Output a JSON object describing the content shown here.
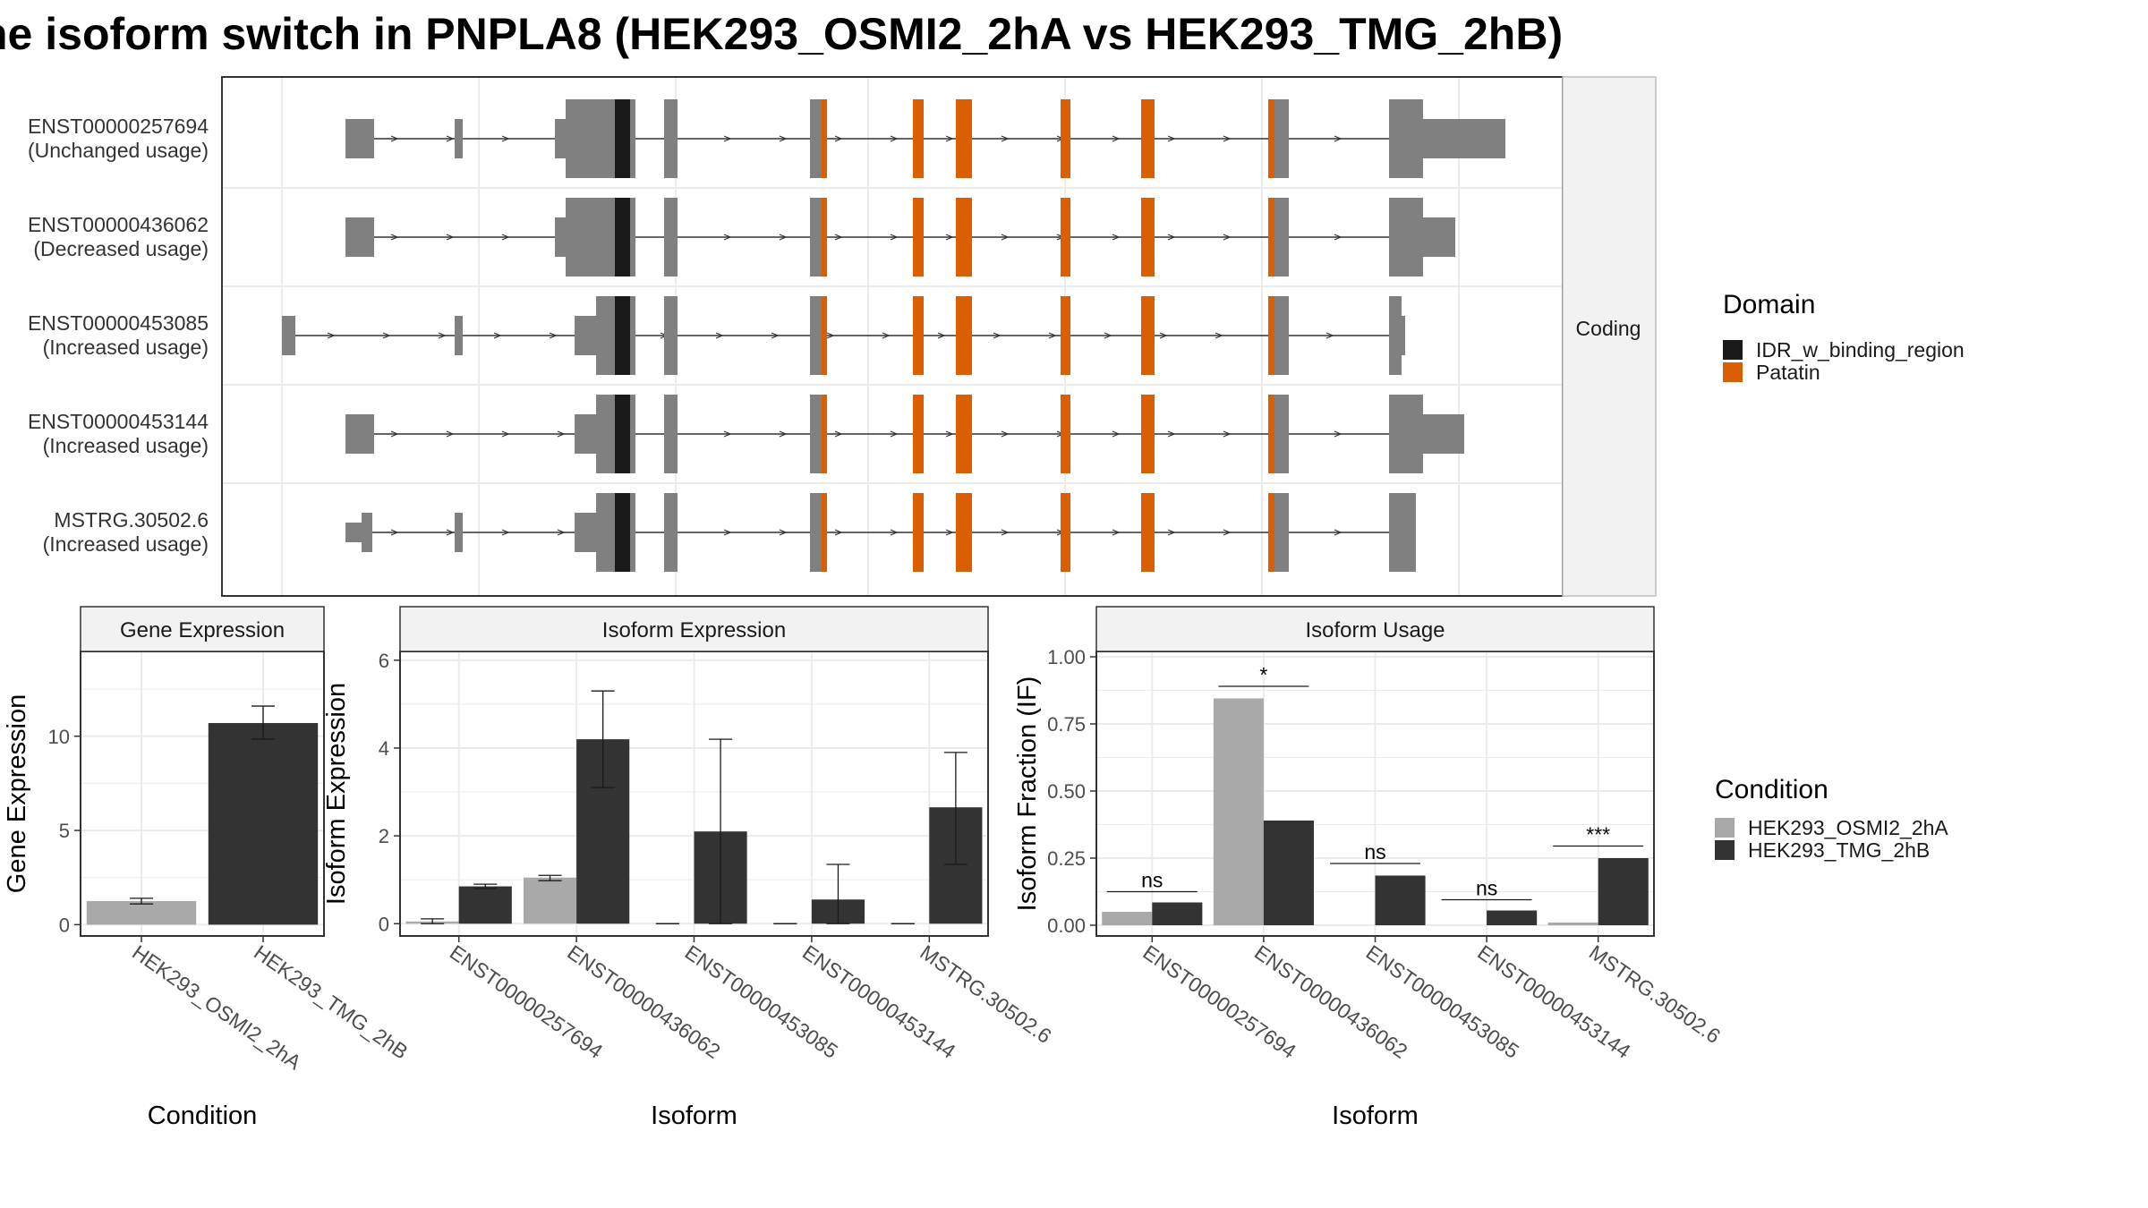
{
  "title": "ne isoform switch in PNPLA8 (HEK293_OSMI2_2hA vs HEK293_TMG_2hB)",
  "colors": {
    "exon": "#808080",
    "idr": "#1a1a1a",
    "patatin": "#d95f02",
    "cond_a": "#a9a9a9",
    "cond_b": "#333333",
    "grid": "#ebebeb",
    "strip": "#f2f2f2",
    "panel_border": "#333333"
  },
  "structure": {
    "strip_label": "Coding",
    "isoforms": [
      {
        "id": "ENST00000257694",
        "usage": "(Unchanged usage)"
      },
      {
        "id": "ENST00000436062",
        "usage": "(Decreased usage)"
      },
      {
        "id": "ENST00000453085",
        "usage": "(Increased usage)"
      },
      {
        "id": "ENST00000453144",
        "usage": "(Increased usage)"
      },
      {
        "id": "MSTRG.30502.6",
        "usage": "(Increased usage)"
      }
    ],
    "domain_legend": {
      "title": "Domain",
      "items": [
        {
          "label": "IDR_w_binding_region",
          "color": "#1a1a1a"
        },
        {
          "label": "Patatin",
          "color": "#d95f02"
        }
      ]
    }
  },
  "condition_legend": {
    "title": "Condition",
    "items": [
      {
        "label": "HEK293_OSMI2_2hA",
        "color": "#a9a9a9"
      },
      {
        "label": "HEK293_TMG_2hB",
        "color": "#333333"
      }
    ]
  },
  "chart_data": [
    {
      "type": "bar",
      "title": "Gene Expression",
      "xlabel": "Condition",
      "ylabel": "Gene Expression",
      "ylim": [
        -0.6,
        14.5
      ],
      "yticks": [
        0,
        5,
        10
      ],
      "categories": [
        "HEK293_OSMI2_2hA",
        "HEK293_TMG_2hB"
      ],
      "values": [
        1.25,
        10.7
      ],
      "errors": [
        [
          1.1,
          1.4
        ],
        [
          9.85,
          11.6
        ]
      ],
      "grid": true
    },
    {
      "type": "bar",
      "title": "Isoform Expression",
      "xlabel": "Isoform",
      "ylabel": "Isoform Expression",
      "ylim": [
        -0.28,
        6.2
      ],
      "yticks": [
        0,
        2,
        4,
        6
      ],
      "categories": [
        "ENST00000257694",
        "ENST00000436062",
        "ENST00000453085",
        "ENST00000453144",
        "MSTRG.30502.6"
      ],
      "series": [
        {
          "name": "HEK293_OSMI2_2hA",
          "values": [
            0.05,
            1.05,
            0.0,
            0.0,
            0.0
          ],
          "errors": [
            [
              0.0,
              0.11
            ],
            [
              0.98,
              1.1
            ],
            [
              0.0,
              0.0
            ],
            [
              0.0,
              0.0
            ],
            [
              0.0,
              0.0
            ]
          ]
        },
        {
          "name": "HEK293_TMG_2hB",
          "values": [
            0.85,
            4.2,
            2.1,
            0.55,
            2.65
          ],
          "errors": [
            [
              0.8,
              0.9
            ],
            [
              3.1,
              5.3
            ],
            [
              0.0,
              4.2
            ],
            [
              0.0,
              1.35
            ],
            [
              1.35,
              3.9
            ]
          ]
        }
      ],
      "grid": true
    },
    {
      "type": "bar",
      "title": "Isoform Usage",
      "xlabel": "Isoform",
      "ylabel": "Isoform Fraction (IF)",
      "ylim": [
        -0.04,
        1.02
      ],
      "yticks": [
        "0.00",
        "0.25",
        "0.50",
        "0.75",
        "1.00"
      ],
      "categories": [
        "ENST00000257694",
        "ENST00000436062",
        "ENST00000453085",
        "ENST00000453144",
        "MSTRG.30502.6"
      ],
      "series": [
        {
          "name": "HEK293_OSMI2_2hA",
          "values": [
            0.05,
            0.845,
            0.0,
            0.0,
            0.01
          ]
        },
        {
          "name": "HEK293_TMG_2hB",
          "values": [
            0.085,
            0.39,
            0.185,
            0.055,
            0.25
          ]
        }
      ],
      "significance": [
        {
          "label": "ns",
          "y": 0.125
        },
        {
          "label": "*",
          "y": 0.89
        },
        {
          "label": "ns",
          "y": 0.23
        },
        {
          "label": "ns",
          "y": 0.095
        },
        {
          "label": "***",
          "y": 0.295
        }
      ],
      "grid": true
    }
  ]
}
